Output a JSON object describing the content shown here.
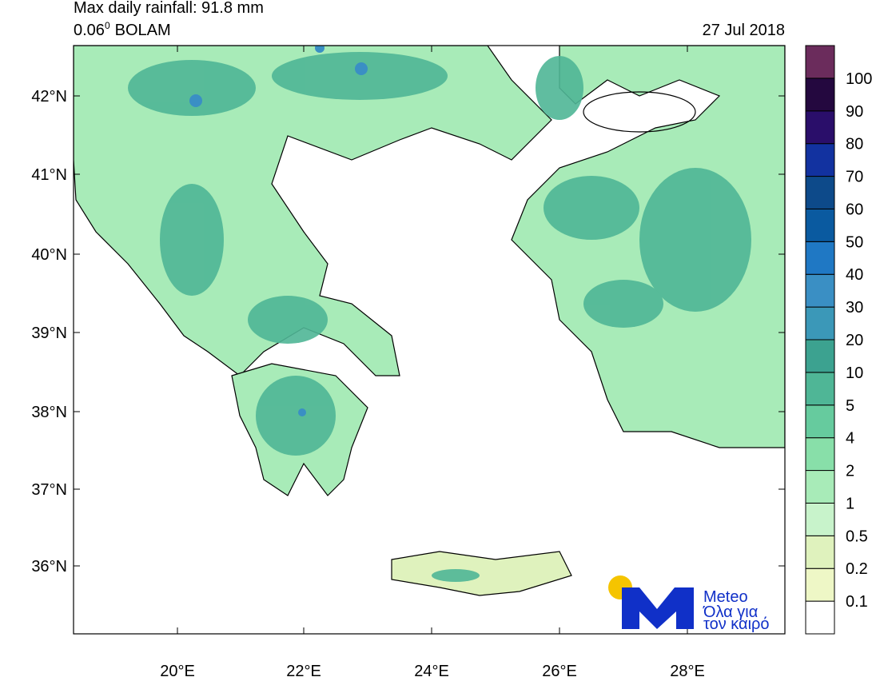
{
  "header": {
    "title": "Max daily rainfall: 91.8 mm",
    "model_resolution": "0.06",
    "model_superscript": "0",
    "model_name": "BOLAM",
    "date": "27 Jul 2018"
  },
  "axes": {
    "lat_labels": [
      "42°N",
      "41°N",
      "40°N",
      "39°N",
      "38°N",
      "37°N",
      "36°N"
    ],
    "lon_labels": [
      "20°E",
      "22°E",
      "24°E",
      "26°E",
      "28°E"
    ]
  },
  "colorbar": {
    "labels": [
      "0.1",
      "0.2",
      "0.5",
      "1",
      "2",
      "4",
      "5",
      "10",
      "20",
      "30",
      "40",
      "50",
      "60",
      "70",
      "80",
      "90",
      "100"
    ],
    "colors": [
      "#ffffff",
      "#eef7c6",
      "#dff2bd",
      "#c8f3cb",
      "#a8ebb8",
      "#88dfa9",
      "#66cb9e",
      "#4fb696",
      "#3ca290",
      "#3b98b8",
      "#3a8fc4",
      "#1f78c4",
      "#0a5aa0",
      "#0d4a8a",
      "#1232a0",
      "#2a0e6a",
      "#24083f",
      "#6b2c5c"
    ]
  },
  "logo": {
    "name": "Meteo",
    "tagline_1": "Όλα για",
    "tagline_2": "τον καιρό"
  }
}
